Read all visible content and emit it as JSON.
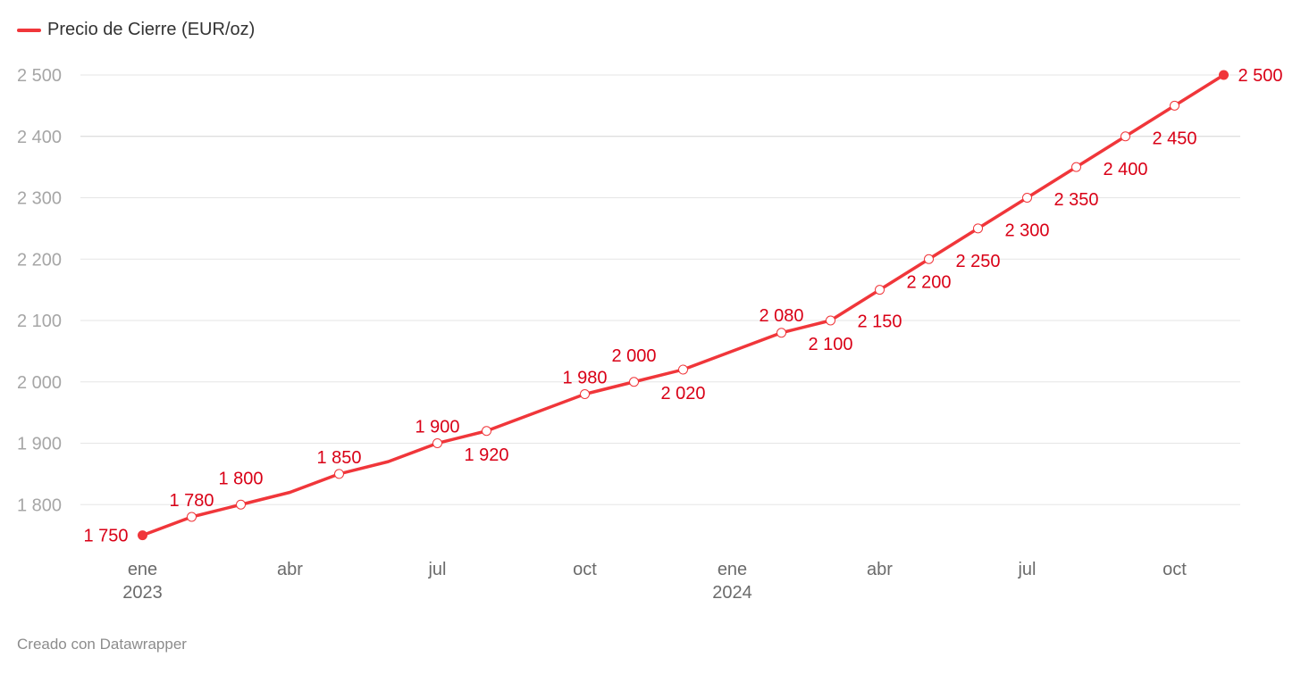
{
  "legend": {
    "label": "Precio de Cierre (EUR/oz)",
    "color": "#f0363a"
  },
  "footer": {
    "credit": "Creado con Datawrapper"
  },
  "colors": {
    "line": "#f0363a",
    "label": "#d90016",
    "grid": "#e6e6e6",
    "axis_text": "#a6a6a6",
    "x_text": "#6b6b6b"
  },
  "chart_data": {
    "type": "line",
    "title": "",
    "xlabel": "",
    "ylabel": "",
    "ylim": [
      1700,
      2500
    ],
    "grid": true,
    "legend_position": "top-left",
    "y_ticks": [
      1800,
      1900,
      2000,
      2100,
      2200,
      2300,
      2400,
      2500
    ],
    "y_tick_labels": [
      "1 800",
      "1 900",
      "2 000",
      "2 100",
      "2 200",
      "2 300",
      "2 400",
      "2 500"
    ],
    "x_ticks": [
      {
        "x": "2023-01",
        "label": "ene",
        "sublabel": "2023"
      },
      {
        "x": "2023-04",
        "label": "abr",
        "sublabel": ""
      },
      {
        "x": "2023-07",
        "label": "jul",
        "sublabel": ""
      },
      {
        "x": "2023-10",
        "label": "oct",
        "sublabel": ""
      },
      {
        "x": "2024-01",
        "label": "ene",
        "sublabel": "2024"
      },
      {
        "x": "2024-04",
        "label": "abr",
        "sublabel": ""
      },
      {
        "x": "2024-07",
        "label": "jul",
        "sublabel": ""
      },
      {
        "x": "2024-10",
        "label": "oct",
        "sublabel": ""
      }
    ],
    "series": [
      {
        "name": "Precio de Cierre (EUR/oz)",
        "points": [
          {
            "x": "2023-01",
            "y": 1750,
            "label": "1 750"
          },
          {
            "x": "2023-02",
            "y": 1780,
            "label": "1 780"
          },
          {
            "x": "2023-03",
            "y": 1800,
            "label": "1 800"
          },
          {
            "x": "2023-04",
            "y": 1820,
            "label": ""
          },
          {
            "x": "2023-05",
            "y": 1850,
            "label": "1 850"
          },
          {
            "x": "2023-06",
            "y": 1870,
            "label": ""
          },
          {
            "x": "2023-07",
            "y": 1900,
            "label": "1 900"
          },
          {
            "x": "2023-08",
            "y": 1920,
            "label": "1 920"
          },
          {
            "x": "2023-09",
            "y": 1950,
            "label": ""
          },
          {
            "x": "2023-10",
            "y": 1980,
            "label": "1 980"
          },
          {
            "x": "2023-11",
            "y": 2000,
            "label": "2 000"
          },
          {
            "x": "2023-12",
            "y": 2020,
            "label": "2 020"
          },
          {
            "x": "2024-01",
            "y": 2050,
            "label": ""
          },
          {
            "x": "2024-02",
            "y": 2080,
            "label": "2 080"
          },
          {
            "x": "2024-03",
            "y": 2100,
            "label": "2 100"
          },
          {
            "x": "2024-04",
            "y": 2150,
            "label": "2 150"
          },
          {
            "x": "2024-05",
            "y": 2200,
            "label": "2 200"
          },
          {
            "x": "2024-06",
            "y": 2250,
            "label": "2 250"
          },
          {
            "x": "2024-07",
            "y": 2300,
            "label": "2 300"
          },
          {
            "x": "2024-08",
            "y": 2350,
            "label": "2 350"
          },
          {
            "x": "2024-09",
            "y": 2400,
            "label": "2 400"
          },
          {
            "x": "2024-10",
            "y": 2450,
            "label": "2 450"
          },
          {
            "x": "2024-11",
            "y": 2500,
            "label": "2 500"
          }
        ]
      }
    ]
  }
}
